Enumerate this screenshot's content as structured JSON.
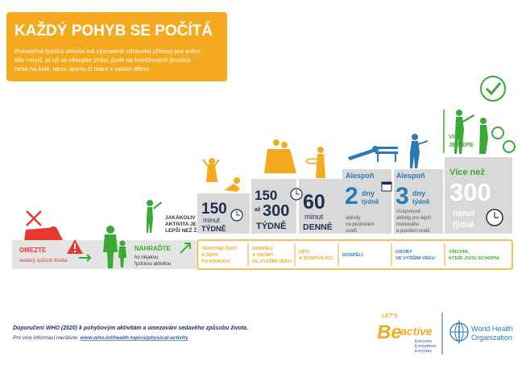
{
  "header": {
    "title": "KAŽDÝ POHYB SE POČÍTÁ",
    "text": [
      "Pravidelná fyzická aktivita má významné zdravotní přínosy pro srdce,",
      "tělo i mysl, ať už se věnujete chůzi, jízdě na kolečkových bruslích",
      "nebo na kole, tanci, sportu či hraní s vašimi dětmi."
    ]
  },
  "steps": {
    "limit": {
      "title": "OMEZTE",
      "text": "sedavý způsob života"
    },
    "replace": {
      "title": "NAHRAĎTE",
      "text": [
        "ho nějakou",
        "fyzickou aktivitou"
      ]
    },
    "any": [
      "JAKÁKOLIV",
      "AKTIVITA JE",
      "LEPŠÍ NEŽ ŽÁDNÁ"
    ],
    "pregnant": {
      "number": "150",
      "unit": "minut",
      "period": "TÝDNĚ"
    },
    "adults": {
      "from": "150",
      "joiner": "až",
      "to": "300",
      "period": "TÝDNĚ"
    },
    "children": {
      "number": "60",
      "unit": "minut",
      "period": "DENNĚ"
    },
    "strength": {
      "prefix": "Alespoň",
      "number": "2",
      "unit": "dny",
      "period": "týdně",
      "text": [
        "aktivity",
        "na posilování",
        "svalů"
      ]
    },
    "balance": {
      "prefix": "Alespoň",
      "number": "3",
      "unit": "dny",
      "period": "týdně",
      "text": [
        "vícepvkové",
        "aktivity pro lepší",
        "rovnováhu",
        "a posílení svalů"
      ]
    },
    "more": {
      "prefix": "Více než",
      "number": "300",
      "unit": "minut",
      "period": "týdně",
      "slogan": [
        "VÍCE",
        "JE LÉPE"
      ]
    }
  },
  "groups": [
    [
      "TĚHOTNÉ ŽENY",
      "A ŽENY",
      "PO PORODU"
    ],
    [
      "DOSPĚLÍ",
      "A OSOBY",
      "VE VYŠŠÍM VĚKU"
    ],
    [
      "DĚTI",
      "A DOSPÍVAJÍCÍ"
    ],
    [
      "DOSPĚLÍ"
    ],
    [
      "OSOBY",
      "VE VYŠŠÍM VĚKU"
    ],
    [
      "VŠICHNI,",
      "KTEŘÍ JSOU SCHOPNI"
    ]
  ],
  "footer": {
    "source": "Doporučení WHO (2020) k pohybovým aktivitám a omezování sedavého způsobu života.",
    "more_info": "Pro více informací navštivte:",
    "link": "www.who.int/health-topics/physical-activity"
  },
  "logos": {
    "be_active": {
      "lets": "LET'S",
      "be": "Be",
      "active": "active",
      "tagline": [
        "Everyone",
        "Everywhere",
        "Everyday"
      ]
    },
    "who": [
      "World Health",
      "Organization"
    ]
  }
}
